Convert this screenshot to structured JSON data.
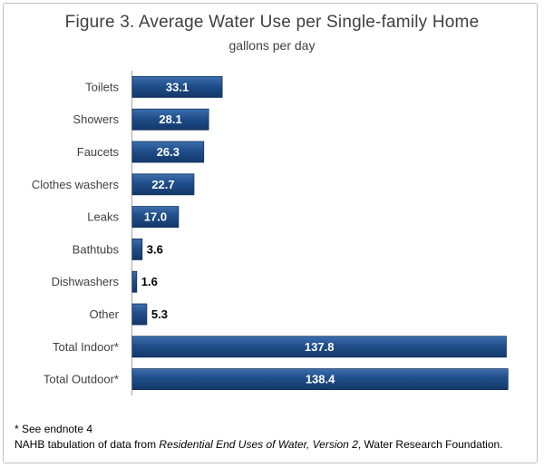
{
  "chart_data": {
    "type": "bar",
    "orientation": "horizontal",
    "title": "Figure 3.  Average Water Use per Single-family Home",
    "subtitle": "gallons per day",
    "categories": [
      "Toilets",
      "Showers",
      "Faucets",
      "Clothes washers",
      "Leaks",
      "Bathtubs",
      "Dishwashers",
      "Other",
      "Total Indoor*",
      "Total Outdoor*"
    ],
    "values": [
      33.1,
      28.1,
      26.3,
      22.7,
      17.0,
      3.6,
      1.6,
      5.3,
      137.8,
      138.4
    ],
    "labels": [
      "33.1",
      "28.1",
      "26.3",
      "22.7",
      "17.0",
      "3.6",
      "1.6",
      "5.3",
      "137.8",
      "138.4"
    ],
    "xlim": [
      0,
      140
    ],
    "xlabel": "",
    "ylabel": "",
    "grid": false,
    "bar_color": "#1f4e8a"
  },
  "footnotes": {
    "endnote": "* See endnote 4",
    "source_prefix": "NAHB tabulation of data from ",
    "source_title": "Residential End Uses of Water, Version 2",
    "source_suffix": ", Water Research Foundation."
  }
}
